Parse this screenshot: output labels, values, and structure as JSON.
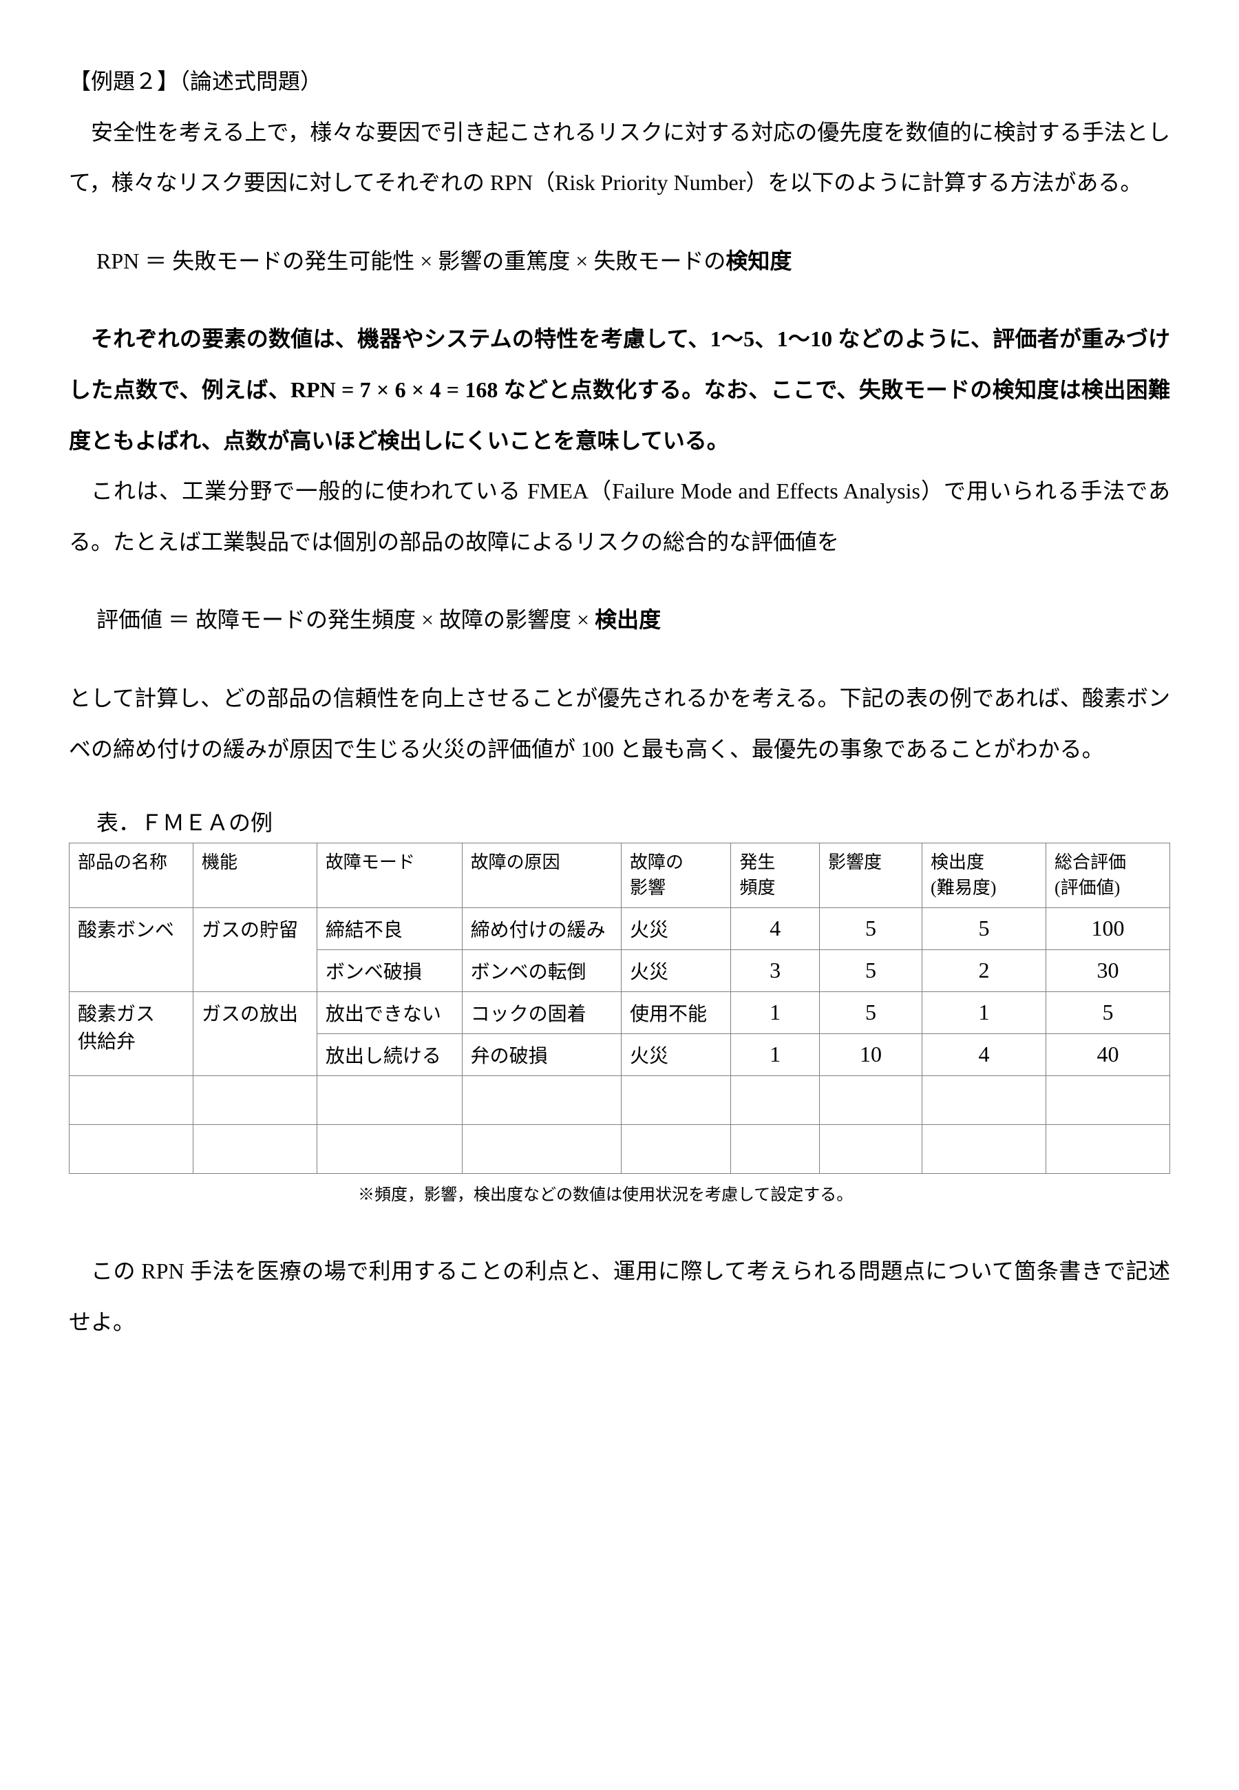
{
  "title": "【例題２】（論述式問題）",
  "para1": "安全性を考える上で，様々な要因で引き起こされるリスクに対する対応の優先度を数値的に検討する手法として，様々なリスク要因に対してそれぞれの RPN（Risk Priority Number）を以下のように計算する方法がある。",
  "formula1_prefix": "RPN ＝ 失敗モードの発生可能性 × 影響の重篤度 × 失敗モードの",
  "formula1_bold": "検知度",
  "para2_bold": "それぞれの要素の数値は、機器やシステムの特性を考慮して、1〜5、1〜10 などのように、評価者が重みづけした点数で、例えば、RPN = 7 × 6 × 4 = 168 などと点数化する。なお、ここで、失敗モードの検知度は検出困難度ともよばれ、点数が高いほど検出しにくいことを意味している。",
  "para3": "これは、工業分野で一般的に使われている FMEA（Failure Mode and Effects Analysis）で用いられる手法である。たとえば工業製品では個別の部品の故障によるリスクの総合的な評価値を",
  "formula2_prefix": "評価値 ＝ 故障モードの発生頻度 × 故障の影響度 × ",
  "formula2_bold": "検出度",
  "para4": "として計算し、どの部品の信頼性を向上させることが優先されるかを考える。下記の表の例であれば、酸素ボンベの締め付けの緩みが原因で生じる火災の評価値が 100 と最も高く、最優先の事象であることがわかる。",
  "table_caption": "表．ＦＭＥＡの例",
  "table": {
    "headers": {
      "name": "部品の名称",
      "function": "機能",
      "mode": "故障モード",
      "cause": "故障の原因",
      "effect": "故障の\n影響",
      "freq": "発生\n頻度",
      "severity": "影響度",
      "detection": "検出度\n(難易度)",
      "total": "総合評価\n(評価値)"
    },
    "rows": [
      {
        "name": "酸素ボンベ",
        "function": "ガスの貯留",
        "mode": "締結不良",
        "cause": "締め付けの緩み",
        "effect": "火災",
        "freq": "4",
        "severity": "5",
        "detection": "5",
        "total": "100"
      },
      {
        "name": "",
        "function": "",
        "mode": "ボンベ破損",
        "cause": "ボンベの転倒",
        "effect": "火災",
        "freq": "3",
        "severity": "5",
        "detection": "2",
        "total": "30"
      },
      {
        "name": "酸素ガス\n供給弁",
        "function": "ガスの放出",
        "mode": "放出できない",
        "cause": "コックの固着",
        "effect": "使用不能",
        "freq": "1",
        "severity": "5",
        "detection": "1",
        "total": "5"
      },
      {
        "name": "",
        "function": "",
        "mode": "放出し続ける",
        "cause": "弁の破損",
        "effect": "火災",
        "freq": "1",
        "severity": "10",
        "detection": "4",
        "total": "40"
      }
    ],
    "note": "※頻度，影響，検出度などの数値は使用状況を考慮して設定する。"
  },
  "para5": "この RPN 手法を医療の場で利用することの利点と、運用に際して考えられる問題点について箇条書きで記述せよ。",
  "styling": {
    "background_color": "#ffffff",
    "text_color": "#000000",
    "border_color": "#808080",
    "body_fontsize": 32,
    "table_fontsize": 28,
    "header_fontsize": 26,
    "note_fontsize": 24,
    "num_fontsize": 32
  }
}
